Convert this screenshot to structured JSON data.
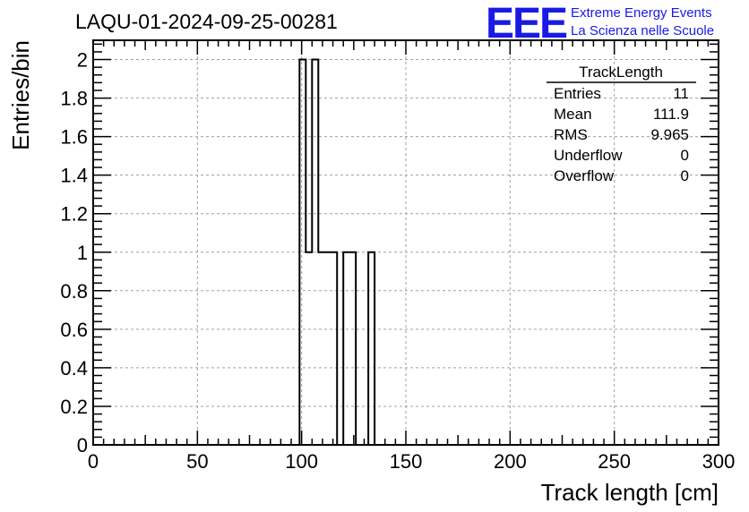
{
  "page": {
    "title": "LAQU-01-2024-09-25-00281",
    "logo": {
      "mark": "EEE",
      "line1": "Extreme Energy Events",
      "line2": "La Scienza nelle Scuole",
      "color": "#1a1ae6"
    }
  },
  "stats": {
    "title": "TrackLength",
    "rows": [
      {
        "label": "Entries",
        "value": "11"
      },
      {
        "label": "Mean",
        "value": "111.9"
      },
      {
        "label": "RMS",
        "value": "9.965"
      },
      {
        "label": "Underflow",
        "value": "0"
      },
      {
        "label": "Overflow",
        "value": "0"
      }
    ]
  },
  "chart_data": {
    "type": "bar",
    "title": "LAQU-01-2024-09-25-00281",
    "xlabel": "Track length [cm]",
    "ylabel": "Entries/bin",
    "xlim": [
      0,
      300
    ],
    "ylim": [
      0,
      2.1
    ],
    "grid": true,
    "x_ticks": [
      0,
      50,
      100,
      150,
      200,
      250,
      300
    ],
    "y_ticks": [
      0,
      0.2,
      0.4,
      0.6,
      0.8,
      1,
      1.2,
      1.4,
      1.6,
      1.8,
      2
    ],
    "x_tick_labels": [
      "0",
      "50",
      "100",
      "150",
      "200",
      "250",
      "300"
    ],
    "y_tick_labels": [
      "0",
      "0.2",
      "0.4",
      "0.6",
      "0.8",
      "1",
      "1.2",
      "1.4",
      "1.6",
      "1.8",
      "2"
    ],
    "bins": [
      {
        "x0": 99,
        "x1": 102,
        "y": 2
      },
      {
        "x0": 102,
        "x1": 105,
        "y": 1
      },
      {
        "x0": 105,
        "x1": 108,
        "y": 2
      },
      {
        "x0": 108,
        "x1": 117,
        "y": 1
      },
      {
        "x0": 120,
        "x1": 126,
        "y": 1
      },
      {
        "x0": 132,
        "x1": 135,
        "y": 1
      }
    ]
  }
}
